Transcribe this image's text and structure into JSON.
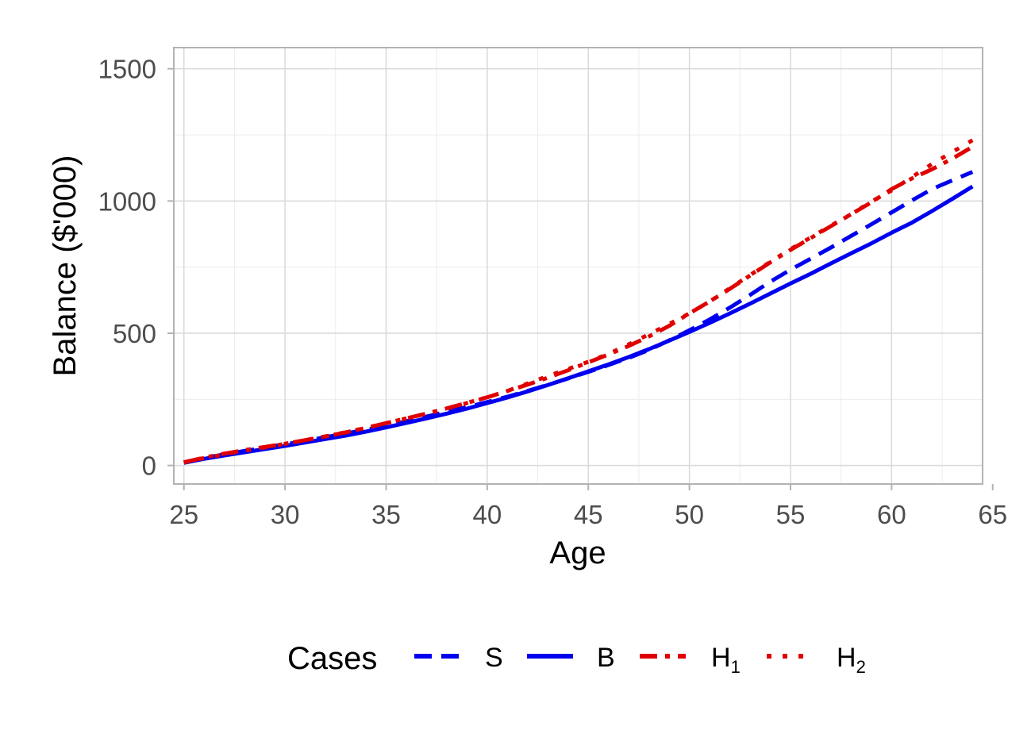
{
  "chart_data": {
    "type": "line",
    "xlabel": "Age",
    "ylabel": "Balance ($'000)",
    "xlim": [
      24.5,
      64.5
    ],
    "ylim": [
      -70,
      1580
    ],
    "x_ticks": [
      25,
      30,
      35,
      40,
      45,
      50,
      55,
      60,
      65
    ],
    "y_ticks": [
      0,
      500,
      1000,
      1500
    ],
    "grid": true,
    "legend": {
      "title": "Cases",
      "position": "bottom",
      "entries": [
        {
          "label": "S",
          "sub": ""
        },
        {
          "label": "B",
          "sub": ""
        },
        {
          "label": "H",
          "sub": "1"
        },
        {
          "label": "H",
          "sub": "2"
        }
      ]
    },
    "x": [
      25,
      26,
      27,
      28,
      29,
      30,
      31,
      32,
      33,
      34,
      35,
      36,
      37,
      38,
      39,
      40,
      41,
      42,
      43,
      44,
      45,
      46,
      47,
      48,
      49,
      50,
      51,
      52,
      53,
      54,
      55,
      56,
      57,
      58,
      59,
      60,
      61,
      62,
      63,
      64
    ],
    "series": [
      {
        "name": "S",
        "color": "#0000ee",
        "dash": "dashed",
        "values": [
          12,
          28,
          42,
          55,
          67,
          80,
          93,
          107,
          121,
          135,
          150,
          167,
          185,
          203,
          221,
          240,
          260,
          282,
          305,
          329,
          354,
          380,
          407,
          437,
          473,
          511,
          552,
          597,
          645,
          695,
          740,
          782,
          824,
          868,
          912,
          957,
          1002,
          1045,
          1078,
          1110
        ]
      },
      {
        "name": "B",
        "color": "#0000ee",
        "dash": "solid",
        "values": [
          10,
          25,
          38,
          50,
          62,
          74,
          87,
          100,
          113,
          128,
          144,
          161,
          178,
          196,
          215,
          236,
          257,
          280,
          304,
          330,
          356,
          382,
          410,
          440,
          472,
          505,
          539,
          575,
          612,
          650,
          688,
          725,
          764,
          802,
          840,
          880,
          918,
          962,
          1008,
          1055
        ]
      },
      {
        "name": "H1",
        "color": "#e00000",
        "dash": "dotdash",
        "values": [
          12,
          30,
          45,
          58,
          70,
          82,
          96,
          110,
          125,
          142,
          160,
          178,
          196,
          216,
          237,
          258,
          282,
          306,
          332,
          360,
          390,
          420,
          452,
          488,
          528,
          575,
          620,
          668,
          718,
          768,
          815,
          860,
          905,
          950,
          995,
          1045,
          1085,
          1120,
          1160,
          1205
        ]
      },
      {
        "name": "H2",
        "color": "#e00000",
        "dash": "dotted",
        "values": [
          12,
          28,
          42,
          56,
          68,
          82,
          96,
          110,
          126,
          142,
          160,
          178,
          196,
          215,
          236,
          258,
          282,
          310,
          338,
          365,
          392,
          422,
          458,
          496,
          535,
          575,
          620,
          670,
          720,
          770,
          818,
          862,
          907,
          950,
          998,
          1040,
          1090,
          1140,
          1185,
          1230
        ]
      }
    ]
  }
}
